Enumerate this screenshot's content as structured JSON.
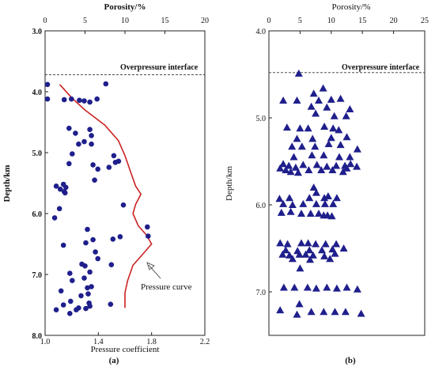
{
  "chart_data": [
    {
      "panel": "(a)",
      "type": "scatter",
      "top_axis": {
        "label": "Porosity/%",
        "lim": [
          0,
          20
        ],
        "ticks": [
          0,
          5,
          10,
          15,
          20
        ]
      },
      "bottom_axis": {
        "label": "Pressure coefficient",
        "lim": [
          1.0,
          2.2
        ],
        "ticks": [
          "1.0",
          "1.4",
          "1.8",
          "2.2"
        ]
      },
      "y_axis": {
        "label": "Depth/km",
        "lim": [
          3.0,
          8.0
        ],
        "inverted": true,
        "ticks": [
          "3.0",
          "4.0",
          "5.0",
          "6.0",
          "7.0",
          "8.0"
        ]
      },
      "overpressure_interface": {
        "depth": 3.72,
        "label": "Overpressure interface",
        "style": "dashed"
      },
      "annotation": "Pressure curve",
      "grid": false,
      "marker": "circle",
      "marker_color": "#1f1f8c",
      "curve_color": "#cc2222",
      "series": [
        {
          "values": [
            [
              0.3,
              3.88
            ],
            [
              0.3,
              4.12
            ],
            [
              2.4,
              4.13
            ],
            [
              3.3,
              4.12
            ],
            [
              4.3,
              4.14
            ],
            [
              4.9,
              4.15
            ],
            [
              5.6,
              4.17
            ],
            [
              6.5,
              4.12
            ],
            [
              7.6,
              3.87
            ],
            [
              3.0,
              4.6
            ],
            [
              3.8,
              4.68
            ],
            [
              5.6,
              4.62
            ],
            [
              5.8,
              4.72
            ],
            [
              4.2,
              4.86
            ],
            [
              4.9,
              4.82
            ],
            [
              5.8,
              4.86
            ],
            [
              3.4,
              5.02
            ],
            [
              8.6,
              5.05
            ],
            [
              8.0,
              5.24
            ],
            [
              8.8,
              5.16
            ],
            [
              9.2,
              5.14
            ],
            [
              3.0,
              5.18
            ],
            [
              6.0,
              5.2
            ],
            [
              6.6,
              5.27
            ],
            [
              1.4,
              5.55
            ],
            [
              1.9,
              5.6
            ],
            [
              2.3,
              5.52
            ],
            [
              2.4,
              5.64
            ],
            [
              2.6,
              5.57
            ],
            [
              2.5,
              5.66
            ],
            [
              6.2,
              5.45
            ],
            [
              9.8,
              5.86
            ],
            [
              1.8,
              5.92
            ],
            [
              1.2,
              6.07
            ],
            [
              5.3,
              6.26
            ],
            [
              5.1,
              6.48
            ],
            [
              6.0,
              6.43
            ],
            [
              8.5,
              6.42
            ],
            [
              9.4,
              6.38
            ],
            [
              12.8,
              6.22
            ],
            [
              12.9,
              6.37
            ],
            [
              2.3,
              6.52
            ],
            [
              6.3,
              6.63
            ],
            [
              6.6,
              6.74
            ],
            [
              4.6,
              6.83
            ],
            [
              3.1,
              6.98
            ],
            [
              5.0,
              6.86
            ],
            [
              4.9,
              7.06
            ],
            [
              5.6,
              6.96
            ],
            [
              3.4,
              7.1
            ],
            [
              5.3,
              7.22
            ],
            [
              5.8,
              7.2
            ],
            [
              8.3,
              6.84
            ],
            [
              2.0,
              7.27
            ],
            [
              4.5,
              7.35
            ],
            [
              3.2,
              7.44
            ],
            [
              5.4,
              7.32
            ],
            [
              5.6,
              7.52
            ],
            [
              5.1,
              7.56
            ],
            [
              2.3,
              7.5
            ],
            [
              1.4,
              7.58
            ],
            [
              3.9,
              7.58
            ],
            [
              4.2,
              7.55
            ],
            [
              5.5,
              7.47
            ],
            [
              8.2,
              7.49
            ],
            [
              3.1,
              7.64
            ]
          ]
        }
      ],
      "pressure_curve": [
        [
          1.11,
          3.88
        ],
        [
          1.2,
          4.1
        ],
        [
          1.3,
          4.3
        ],
        [
          1.45,
          4.55
        ],
        [
          1.55,
          4.8
        ],
        [
          1.6,
          5.05
        ],
        [
          1.64,
          5.3
        ],
        [
          1.68,
          5.55
        ],
        [
          1.72,
          5.68
        ],
        [
          1.68,
          5.85
        ],
        [
          1.66,
          6.0
        ],
        [
          1.7,
          6.2
        ],
        [
          1.76,
          6.35
        ],
        [
          1.8,
          6.5
        ],
        [
          1.74,
          6.65
        ],
        [
          1.66,
          6.85
        ],
        [
          1.62,
          7.1
        ],
        [
          1.6,
          7.3
        ],
        [
          1.6,
          7.55
        ]
      ]
    },
    {
      "panel": "(b)",
      "type": "scatter",
      "top_axis": {
        "label": "Porosity/%",
        "lim": [
          0,
          25
        ],
        "ticks": [
          0,
          5,
          10,
          15,
          20,
          25
        ]
      },
      "y_axis": {
        "label": "Depth/km",
        "lim": [
          4.0,
          7.5
        ],
        "inverted": true,
        "ticks": [
          "4.0",
          "5.0",
          "6.0",
          "7.0"
        ]
      },
      "overpressure_interface": {
        "depth": 4.48,
        "label": "Overpressure interface",
        "style": "dashed"
      },
      "grid": false,
      "marker": "triangle",
      "marker_color": "#1f1f8c",
      "series": [
        {
          "values": [
            [
              4.8,
              4.49
            ],
            [
              8.7,
              4.66
            ],
            [
              7.2,
              4.72
            ],
            [
              2.3,
              4.8
            ],
            [
              4.5,
              4.8
            ],
            [
              8.0,
              4.8
            ],
            [
              10.0,
              4.79
            ],
            [
              11.5,
              4.78
            ],
            [
              6.8,
              4.87
            ],
            [
              9.3,
              4.88
            ],
            [
              13.0,
              4.9
            ],
            [
              7.5,
              4.95
            ],
            [
              10.5,
              4.98
            ],
            [
              12.4,
              4.98
            ],
            [
              2.9,
              5.11
            ],
            [
              5.0,
              5.12
            ],
            [
              6.3,
              5.12
            ],
            [
              8.9,
              5.1
            ],
            [
              10.3,
              5.12
            ],
            [
              11.2,
              5.14
            ],
            [
              4.5,
              5.24
            ],
            [
              7.0,
              5.24
            ],
            [
              10.0,
              5.23
            ],
            [
              12.5,
              5.22
            ],
            [
              14.2,
              5.36
            ],
            [
              3.7,
              5.33
            ],
            [
              5.3,
              5.33
            ],
            [
              7.4,
              5.33
            ],
            [
              9.6,
              5.3
            ],
            [
              11.5,
              5.31
            ],
            [
              4.0,
              5.45
            ],
            [
              6.9,
              5.43
            ],
            [
              8.8,
              5.43
            ],
            [
              11.3,
              5.45
            ],
            [
              13.0,
              5.45
            ],
            [
              2.3,
              5.53
            ],
            [
              3.2,
              5.55
            ],
            [
              4.3,
              5.57
            ],
            [
              5.5,
              5.54
            ],
            [
              7.7,
              5.54
            ],
            [
              9.3,
              5.56
            ],
            [
              10.8,
              5.55
            ],
            [
              12.2,
              5.55
            ],
            [
              13.1,
              5.53
            ],
            [
              14.1,
              5.56
            ],
            [
              1.8,
              5.58
            ],
            [
              2.7,
              5.6
            ],
            [
              3.5,
              5.62
            ],
            [
              4.7,
              5.63
            ],
            [
              6.4,
              5.6
            ],
            [
              8.4,
              5.6
            ],
            [
              10.2,
              5.6
            ],
            [
              11.9,
              5.62
            ],
            [
              12.5,
              5.58
            ],
            [
              7.2,
              5.8
            ],
            [
              7.6,
              5.86
            ],
            [
              1.7,
              5.93
            ],
            [
              3.3,
              5.92
            ],
            [
              6.5,
              5.92
            ],
            [
              8.9,
              5.92
            ],
            [
              9.5,
              5.9
            ],
            [
              10.9,
              5.92
            ],
            [
              2.3,
              5.99
            ],
            [
              3.8,
              6.0
            ],
            [
              5.5,
              5.99
            ],
            [
              7.6,
              5.99
            ],
            [
              9.0,
              5.99
            ],
            [
              10.3,
              5.99
            ],
            [
              2.0,
              6.09
            ],
            [
              3.5,
              6.08
            ],
            [
              5.2,
              6.1
            ],
            [
              6.7,
              6.1
            ],
            [
              8.0,
              6.1
            ],
            [
              8.8,
              6.12
            ],
            [
              9.4,
              6.12
            ],
            [
              10.1,
              6.13
            ],
            [
              1.8,
              6.44
            ],
            [
              3.0,
              6.45
            ],
            [
              5.2,
              6.44
            ],
            [
              6.3,
              6.44
            ],
            [
              7.5,
              6.45
            ],
            [
              9.1,
              6.45
            ],
            [
              10.8,
              6.45
            ],
            [
              2.7,
              6.52
            ],
            [
              4.6,
              6.53
            ],
            [
              6.5,
              6.52
            ],
            [
              8.5,
              6.52
            ],
            [
              10.2,
              6.51
            ],
            [
              12.0,
              6.5
            ],
            [
              2.2,
              6.57
            ],
            [
              3.3,
              6.58
            ],
            [
              4.9,
              6.57
            ],
            [
              5.9,
              6.57
            ],
            [
              7.1,
              6.58
            ],
            [
              8.9,
              6.59
            ],
            [
              10.6,
              6.56
            ],
            [
              3.8,
              6.62
            ],
            [
              6.6,
              6.63
            ],
            [
              9.8,
              6.62
            ],
            [
              5.0,
              6.73
            ],
            [
              2.4,
              6.95
            ],
            [
              4.1,
              6.95
            ],
            [
              6.2,
              6.95
            ],
            [
              7.6,
              6.96
            ],
            [
              9.3,
              6.95
            ],
            [
              10.9,
              6.96
            ],
            [
              12.5,
              6.95
            ],
            [
              14.2,
              6.97
            ],
            [
              4.9,
              7.14
            ],
            [
              1.8,
              7.21
            ],
            [
              4.5,
              7.26
            ],
            [
              6.8,
              7.23
            ],
            [
              8.8,
              7.23
            ],
            [
              10.6,
              7.23
            ],
            [
              12.3,
              7.23
            ],
            [
              14.8,
              7.25
            ]
          ]
        }
      ]
    }
  ]
}
